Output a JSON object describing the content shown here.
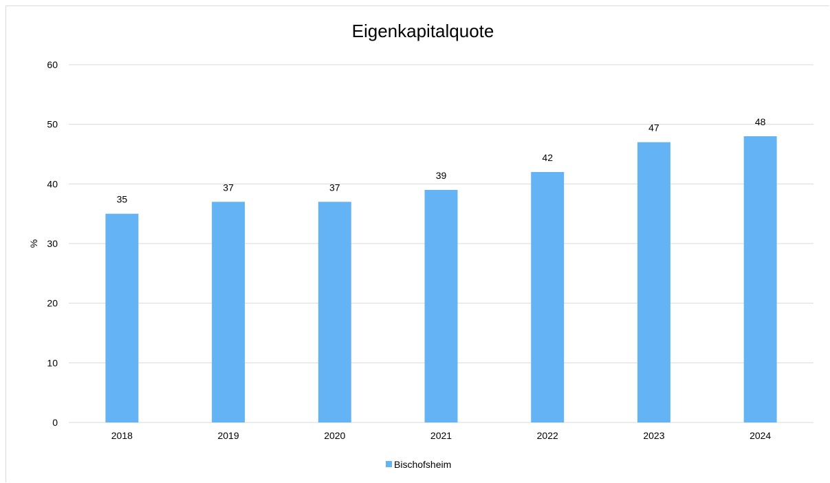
{
  "chart_data": {
    "type": "bar",
    "title": "Eigenkapitalquote",
    "xlabel": "",
    "ylabel": "%",
    "ylim": [
      0,
      60
    ],
    "yticks": [
      0,
      10,
      20,
      30,
      40,
      50,
      60
    ],
    "categories": [
      "2018",
      "2019",
      "2020",
      "2021",
      "2022",
      "2023",
      "2024"
    ],
    "series": [
      {
        "name": "Bischofsheim",
        "values": [
          35,
          37,
          37,
          39,
          42,
          47,
          48
        ],
        "color": "#63b3f5"
      }
    ],
    "grid": true,
    "legend_position": "bottom",
    "data_labels": true
  }
}
